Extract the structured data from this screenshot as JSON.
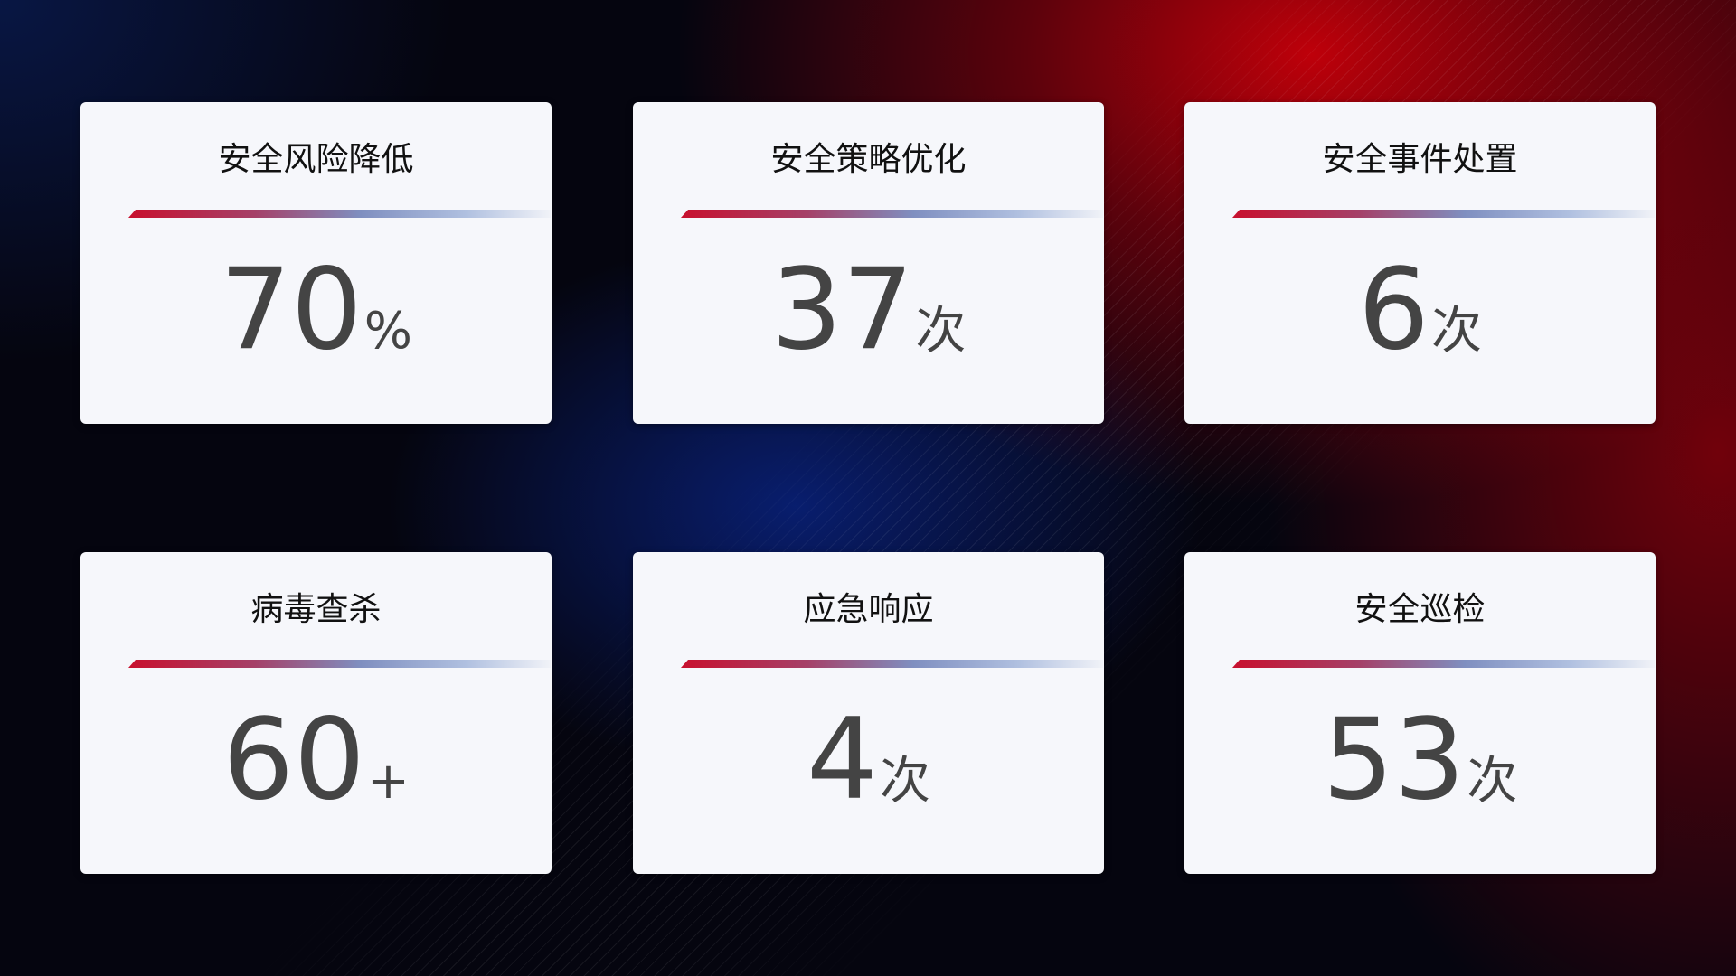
{
  "cards": [
    {
      "title": "安全风险降低",
      "value": "70",
      "unit": "%"
    },
    {
      "title": "安全策略优化",
      "value": "37",
      "unit": "次"
    },
    {
      "title": "安全事件处置",
      "value": "6",
      "unit": "次"
    },
    {
      "title": "病毒查杀",
      "value": "60",
      "unit": "+"
    },
    {
      "title": "应急响应",
      "value": "4",
      "unit": "次"
    },
    {
      "title": "安全巡检",
      "value": "53",
      "unit": "次"
    }
  ],
  "colors": {
    "accent_red": "#c8102e",
    "accent_blue": "#7f8fc0",
    "card_bg": "#f6f7fb",
    "value_text": "#444444"
  }
}
